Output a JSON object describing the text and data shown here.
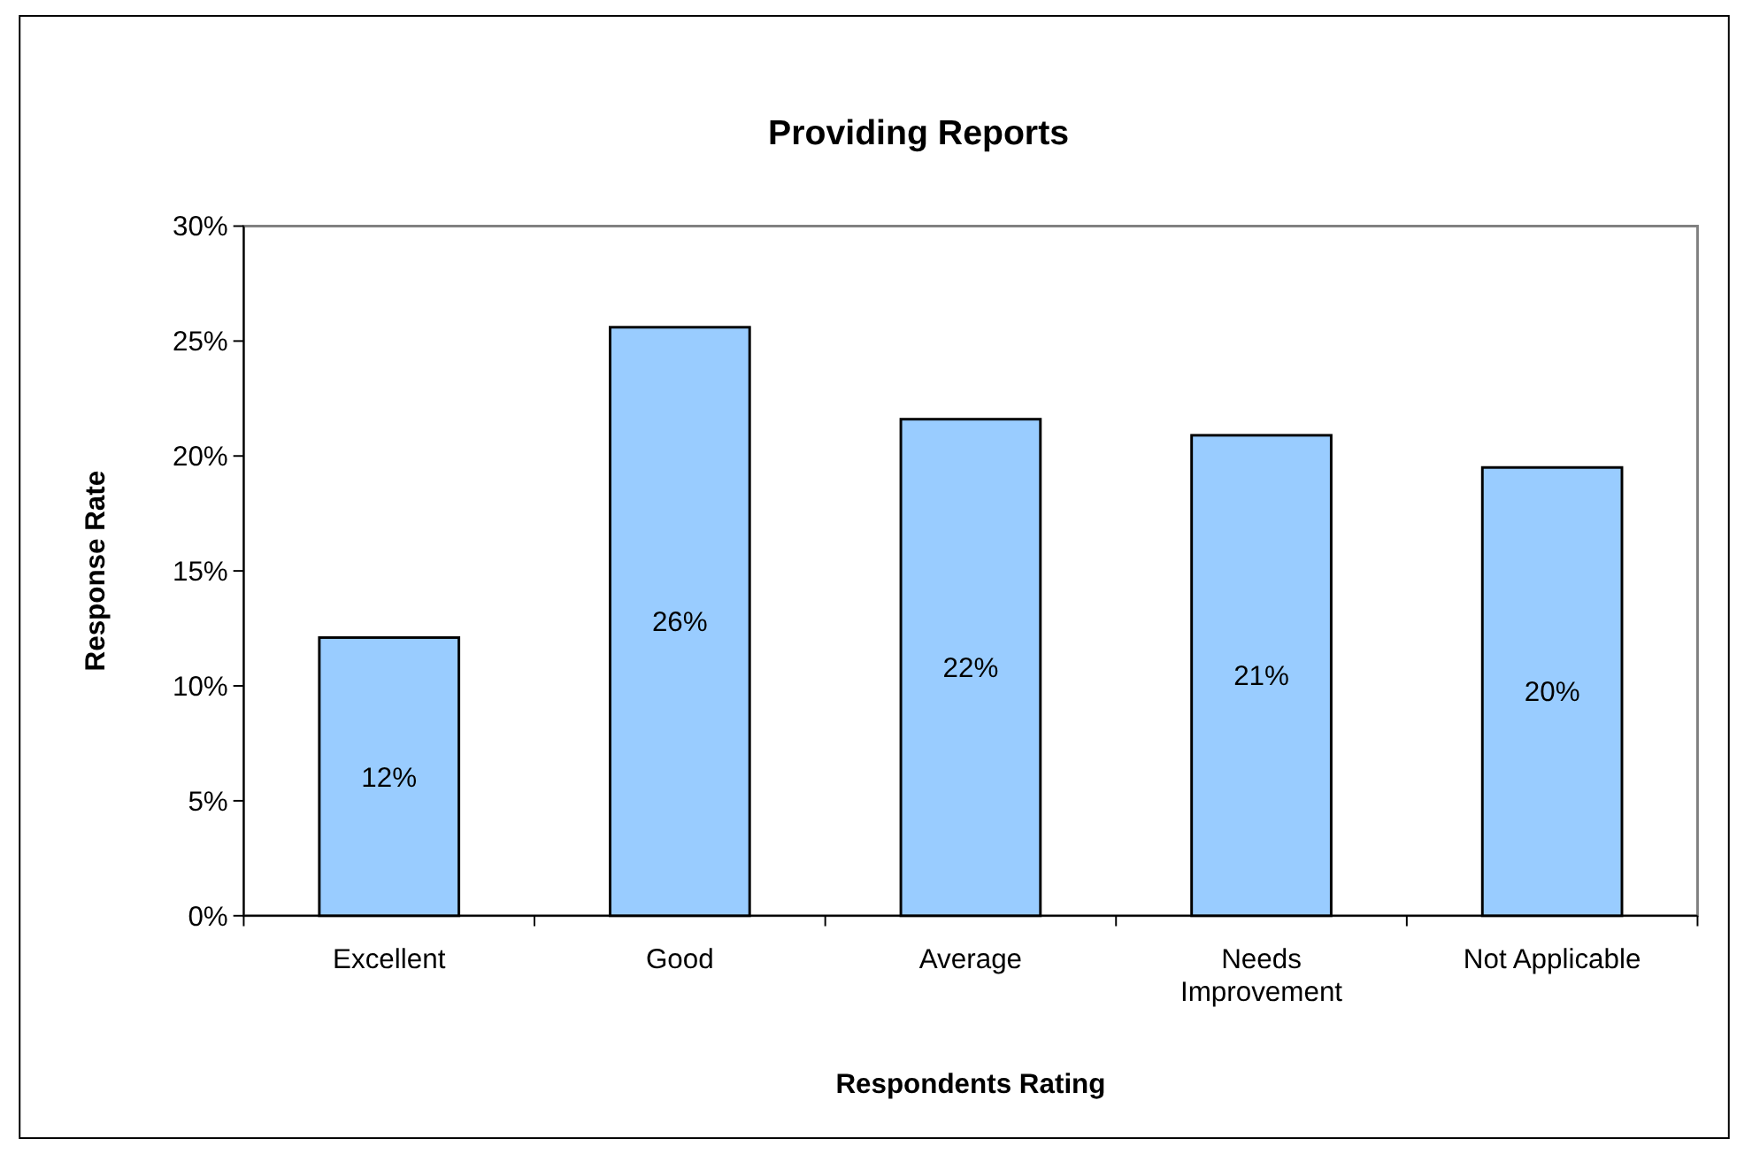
{
  "chart_data": {
    "type": "bar",
    "title": "Providing Reports",
    "xlabel": "Respondents Rating",
    "ylabel": "Response Rate",
    "categories": [
      "Excellent",
      "Good",
      "Average",
      "Needs Improvement",
      "Not Applicable"
    ],
    "values": [
      12.1,
      25.6,
      21.6,
      20.9,
      19.5
    ],
    "value_labels": [
      "12%",
      "26%",
      "22%",
      "21%",
      "20%"
    ],
    "color": "#99ccff",
    "ylim": [
      0,
      30
    ],
    "yticks": [
      {
        "value": 0,
        "label": "0%"
      },
      {
        "value": 5,
        "label": "5%"
      },
      {
        "value": 10,
        "label": "10%"
      },
      {
        "value": 15,
        "label": "15%"
      },
      {
        "value": 20,
        "label": "20%"
      },
      {
        "value": 25,
        "label": "25%"
      },
      {
        "value": 30,
        "label": "30%"
      }
    ],
    "grid": false
  }
}
